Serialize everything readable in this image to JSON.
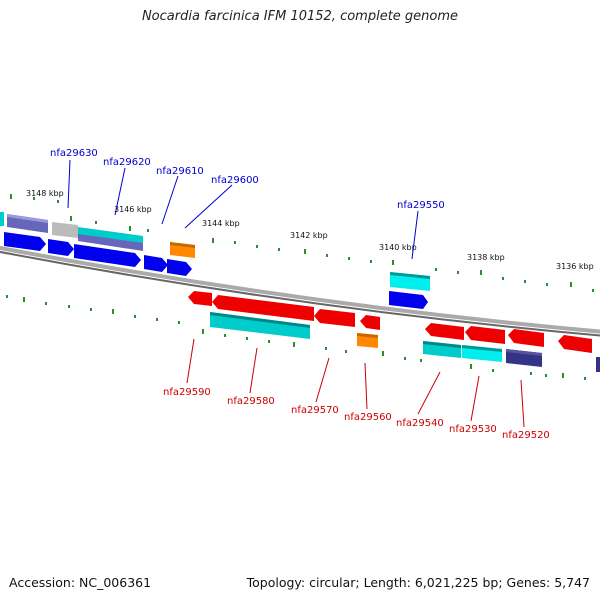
{
  "title": "Nocardia farcinica IFM 10152, complete genome",
  "footer": {
    "accession": "Accession: NC_006361",
    "summary": "Topology: circular; Length: 6,021,225 bp; Genes: 5,747"
  },
  "colors": {
    "forward_label": "#0000cc",
    "reverse_label": "#cc0000",
    "tick": "#2e8b2e",
    "backbone": "#888888",
    "blue": "#0000ee",
    "red": "#ee0000",
    "cyan": "#00cccc",
    "orange": "#ff8800",
    "slate": "#6666bb",
    "navy": "#333388",
    "gray": "#bbbbbb"
  },
  "scale": {
    "kbp_labels": [
      "3148 kbp",
      "3146 kbp",
      "3144 kbp",
      "3142 kbp",
      "3140 kbp",
      "3138 kbp",
      "3136 kbp"
    ]
  },
  "genes": {
    "forward_labels": [
      "nfa29630",
      "nfa29620",
      "nfa29610",
      "nfa29600",
      "nfa29550"
    ],
    "reverse_labels": [
      "nfa29590",
      "nfa29580",
      "nfa29570",
      "nfa29560",
      "nfa29540",
      "nfa29530",
      "nfa29520"
    ]
  }
}
